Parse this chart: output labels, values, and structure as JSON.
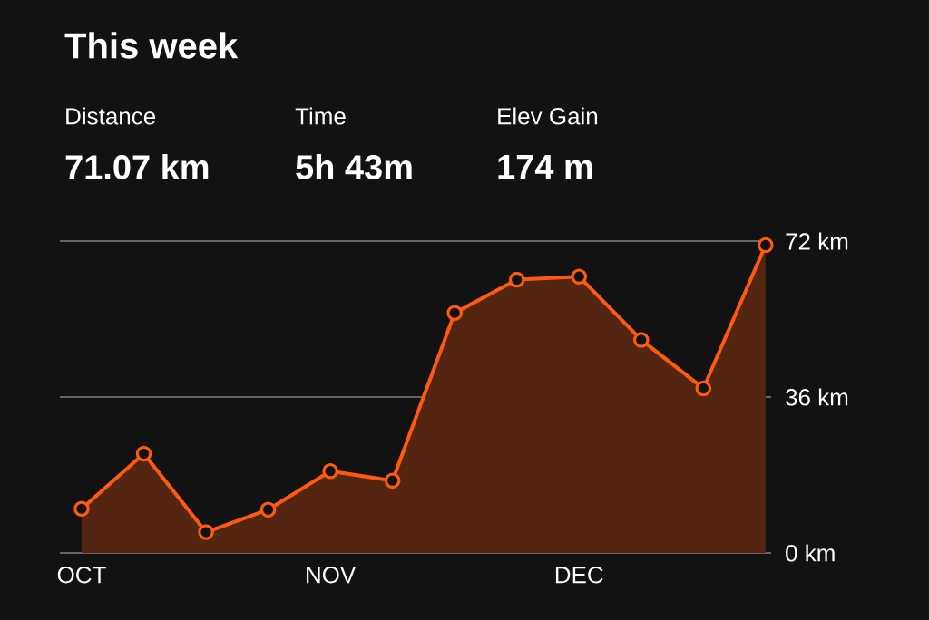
{
  "chart_data": {
    "type": "area",
    "title": "This week",
    "annotations": [
      "Distance",
      "71.07 km",
      "Time",
      "5h 43m",
      "Elev Gain",
      "174 m"
    ],
    "categories": [
      "OCT",
      null,
      null,
      null,
      "NOV",
      null,
      null,
      null,
      "DEC",
      null,
      null,
      null
    ],
    "series": [
      {
        "color": "#fc5a12",
        "values": [
          10.2,
          22.9,
          4.8,
          10.0,
          18.9,
          16.7,
          55.4,
          63.1,
          63.8,
          49.2,
          38.0,
          71.07
        ]
      }
    ],
    "ylim": [
      0,
      72
    ],
    "yticks": [
      {
        "value": 0,
        "label": "0 km"
      },
      {
        "value": 36,
        "label": "36 km"
      },
      {
        "value": 72,
        "label": "72 km"
      }
    ],
    "grid": "y",
    "marker": "circle",
    "line_style": "solid"
  }
}
